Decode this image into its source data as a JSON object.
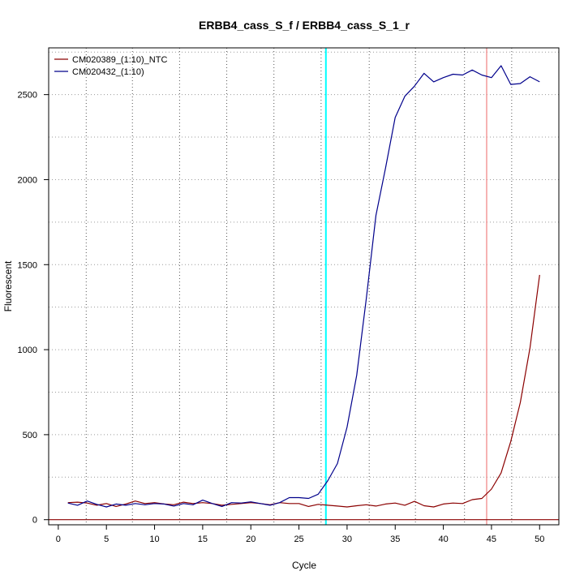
{
  "chart_data": {
    "type": "line",
    "title": "ERBB4_cass_S_f / ERBB4_cass_S_1_r",
    "xlabel": "Cycle",
    "ylabel": "Fluorescent",
    "xlim": [
      -1,
      52
    ],
    "ylim": [
      -30,
      2775
    ],
    "x_ticks": [
      0,
      5,
      10,
      15,
      20,
      25,
      30,
      35,
      40,
      45,
      50
    ],
    "y_ticks": [
      0,
      500,
      1000,
      1500,
      2000,
      2500
    ],
    "grid": true,
    "legend_position": "top-left",
    "x": [
      1,
      2,
      3,
      4,
      5,
      6,
      7,
      8,
      9,
      10,
      11,
      12,
      13,
      14,
      15,
      16,
      17,
      18,
      19,
      20,
      21,
      22,
      23,
      24,
      25,
      26,
      27,
      28,
      29,
      30,
      31,
      32,
      33,
      34,
      35,
      36,
      37,
      38,
      39,
      40,
      41,
      42,
      43,
      44,
      45,
      46,
      47,
      48,
      49,
      50
    ],
    "series": [
      {
        "name": "CM020389_(1:10)_NTC",
        "color": "#8b0000",
        "values": [
          100,
          103,
          98,
          85,
          95,
          78,
          92,
          110,
          95,
          100,
          92,
          88,
          103,
          95,
          100,
          95,
          85,
          90,
          95,
          100,
          95,
          88,
          100,
          95,
          95,
          78,
          90,
          85,
          80,
          75,
          82,
          88,
          80,
          92,
          98,
          85,
          108,
          82,
          75,
          92,
          98,
          95,
          118,
          125,
          180,
          275,
          460,
          690,
          1010,
          1440
        ]
      },
      {
        "name": "CM020432_(1:10)",
        "color": "#00008b",
        "values": [
          98,
          85,
          110,
          90,
          75,
          92,
          85,
          95,
          88,
          95,
          92,
          80,
          95,
          88,
          115,
          95,
          78,
          100,
          98,
          105,
          95,
          85,
          100,
          130,
          130,
          125,
          150,
          230,
          330,
          545,
          850,
          1300,
          1790,
          2070,
          2365,
          2490,
          2550,
          2625,
          2575,
          2600,
          2620,
          2615,
          2645,
          2615,
          2600,
          2670,
          2560,
          2565,
          2605,
          2575
        ]
      }
    ],
    "vertical_lines": [
      {
        "x": 27.8,
        "color": "#00ffff"
      },
      {
        "x": 44.5,
        "color": "#f08080"
      }
    ],
    "dotted_vertical_lines": [
      2.9,
      7.7,
      12.6,
      17.5,
      22.4,
      27.3,
      32.3,
      37.1,
      42.2,
      47.1
    ],
    "baseline": {
      "y": 0,
      "color": "#8b0000"
    }
  }
}
